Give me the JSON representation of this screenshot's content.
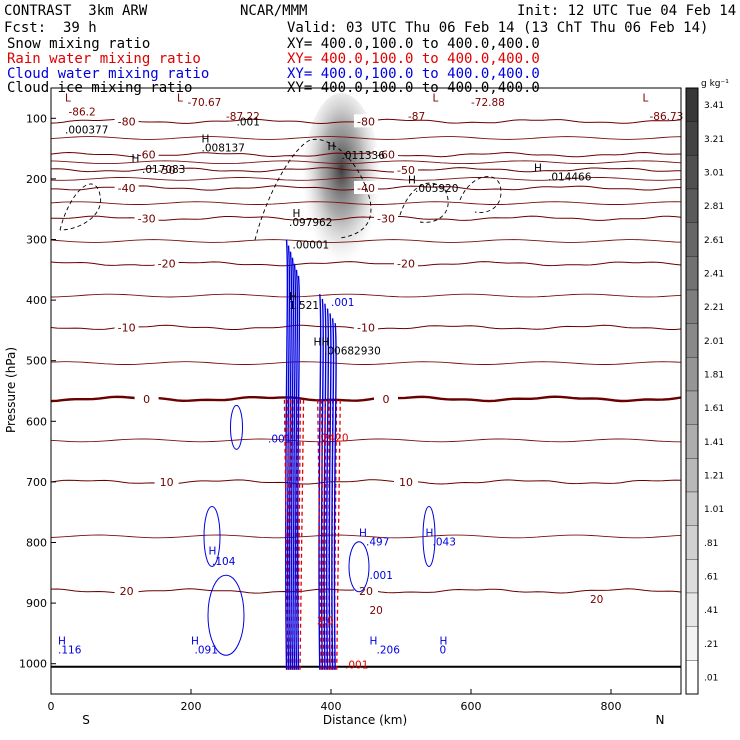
{
  "header": {
    "model": "CONTRAST  3km ARW",
    "center": "NCAR/MMM",
    "init": "Init: 12 UTC Tue 04 Feb 14",
    "fcst_label": "Fcst:",
    "fcst_value": "39 h",
    "valid": "Valid: 03 UTC Thu 06 Feb 14 (13 ChT Thu 06 Feb 14)"
  },
  "fields": [
    {
      "name": "Snow mixing ratio",
      "color": "#000000",
      "xy": "XY= 400.0,100.0 to 400.0,400.0"
    },
    {
      "name": "Rain water mixing ratio",
      "color": "#e00000",
      "xy": "XY= 400.0,100.0 to 400.0,400.0"
    },
    {
      "name": "Cloud water mixing ratio",
      "color": "#0000e0",
      "xy": "XY= 400.0,100.0 to 400.0,400.0"
    },
    {
      "name": "Cloud ice mixing ratio",
      "color": "#000000",
      "xy": "XY= 400.0,100.0 to 400.0,400.0"
    }
  ],
  "chart_data": {
    "type": "heatmap",
    "xlabel": "Distance (km)",
    "ylabel": "Pressure (hPa)",
    "xlim": [
      0,
      900
    ],
    "ylim": [
      1050,
      50
    ],
    "x_ticks": [
      0,
      200,
      400,
      600,
      800
    ],
    "y_ticks": [
      100,
      200,
      300,
      400,
      500,
      600,
      700,
      800,
      900,
      1000
    ],
    "x_endpoints": [
      "S",
      "N"
    ],
    "colorbar": {
      "unit": "g kg⁻¹",
      "labels": [
        "3.41",
        "3.21",
        "3.01",
        "2.81",
        "2.61",
        "2.41",
        "2.21",
        "2.01",
        "1.81",
        "1.61",
        "1.41",
        "1.21",
        "1.01",
        ".81",
        ".61",
        ".41",
        ".21",
        ".01"
      ]
    },
    "isotherms": [
      {
        "p": 105,
        "label": "-80"
      },
      {
        "p": 160,
        "label": "-60"
      },
      {
        "p": 185,
        "label": "-50"
      },
      {
        "p": 215,
        "label": "-40"
      },
      {
        "p": 265,
        "label": "-30"
      },
      {
        "p": 340,
        "label": "-20"
      },
      {
        "p": 445,
        "label": "-10"
      },
      {
        "p": 563,
        "label": "0"
      },
      {
        "p": 700,
        "label": "10"
      },
      {
        "p": 880,
        "label": "20"
      }
    ],
    "annotations": [
      {
        "text": "L",
        "x": 20,
        "p": 72,
        "color": "#7a0000"
      },
      {
        "text": "-86.2",
        "x": 25,
        "p": 95,
        "color": "#7a0000"
      },
      {
        "text": ".000377",
        "x": 20,
        "p": 125,
        "color": "#000"
      },
      {
        "text": "L",
        "x": 180,
        "p": 72,
        "color": "#7a0000"
      },
      {
        "text": "-70.67",
        "x": 195,
        "p": 80,
        "color": "#7a0000"
      },
      {
        "text": "-87.22",
        "x": 250,
        "p": 103,
        "color": "#7a0000"
      },
      {
        "text": ".001",
        "x": 265,
        "p": 112,
        "color": "#000"
      },
      {
        "text": "H",
        "x": 215,
        "p": 140,
        "color": "#000"
      },
      {
        "text": ".008137",
        "x": 215,
        "p": 155,
        "color": "#000"
      },
      {
        "text": "H",
        "x": 115,
        "p": 172,
        "color": "#000"
      },
      {
        "text": ".017083",
        "x": 130,
        "p": 190,
        "color": "#000"
      },
      {
        "text": "H",
        "x": 395,
        "p": 152,
        "color": "#000"
      },
      {
        "text": ".011336",
        "x": 415,
        "p": 167,
        "color": "#000"
      },
      {
        "text": "-72.88",
        "x": 600,
        "p": 80,
        "color": "#7a0000"
      },
      {
        "text": "-87",
        "x": 510,
        "p": 103,
        "color": "#7a0000"
      },
      {
        "text": "-86.73",
        "x": 855,
        "p": 103,
        "color": "#7a0000"
      },
      {
        "text": "L",
        "x": 845,
        "p": 72,
        "color": "#7a0000"
      },
      {
        "text": "L",
        "x": 545,
        "p": 72,
        "color": "#7a0000"
      },
      {
        "text": "H",
        "x": 510,
        "p": 208,
        "color": "#000"
      },
      {
        "text": ".005920",
        "x": 520,
        "p": 222,
        "color": "#000"
      },
      {
        "text": "H",
        "x": 690,
        "p": 188,
        "color": "#000"
      },
      {
        "text": ".014466",
        "x": 710,
        "p": 203,
        "color": "#000"
      },
      {
        "text": "H",
        "x": 345,
        "p": 263,
        "color": "#000"
      },
      {
        "text": ".097962",
        "x": 340,
        "p": 278,
        "color": "#000"
      },
      {
        "text": ".00001",
        "x": 345,
        "p": 315,
        "color": "#000"
      },
      {
        "text": "H",
        "x": 340,
        "p": 400,
        "color": "#000"
      },
      {
        "text": "1.521",
        "x": 340,
        "p": 415,
        "color": "#000"
      },
      {
        "text": ".001",
        "x": 400,
        "p": 410,
        "color": "#0000e0"
      },
      {
        "text": "HH",
        "x": 375,
        "p": 475,
        "color": "#000"
      },
      {
        "text": ".00682930",
        "x": 390,
        "p": 490,
        "color": "#000"
      },
      {
        "text": ".001",
        "x": 310,
        "p": 635,
        "color": "#0000e0"
      },
      {
        "text": "2420",
        "x": 387,
        "p": 633,
        "color": "#e00000"
      },
      {
        "text": "H",
        "x": 225,
        "p": 820,
        "color": "#0000e0"
      },
      {
        "text": ".104",
        "x": 230,
        "p": 837,
        "color": "#0000e0"
      },
      {
        "text": "H",
        "x": 440,
        "p": 790,
        "color": "#0000e0"
      },
      {
        "text": ".497",
        "x": 450,
        "p": 805,
        "color": "#0000e0"
      },
      {
        "text": ".001",
        "x": 455,
        "p": 860,
        "color": "#0000e0"
      },
      {
        "text": "H",
        "x": 535,
        "p": 790,
        "color": "#0000e0"
      },
      {
        "text": ".043",
        "x": 545,
        "p": 805,
        "color": "#0000e0"
      },
      {
        "text": "H",
        "x": 10,
        "p": 968,
        "color": "#0000e0"
      },
      {
        "text": ".116",
        "x": 10,
        "p": 983,
        "color": "#0000e0"
      },
      {
        "text": "H",
        "x": 200,
        "p": 968,
        "color": "#0000e0"
      },
      {
        "text": ".091",
        "x": 205,
        "p": 983,
        "color": "#0000e0"
      },
      {
        "text": "H",
        "x": 455,
        "p": 968,
        "color": "#0000e0"
      },
      {
        "text": ".206",
        "x": 465,
        "p": 983,
        "color": "#0000e0"
      },
      {
        "text": "H",
        "x": 555,
        "p": 968,
        "color": "#0000e0"
      },
      {
        "text": "0",
        "x": 555,
        "p": 983,
        "color": "#0000e0"
      },
      {
        "text": "2.0",
        "x": 380,
        "p": 935,
        "color": "#e00000"
      },
      {
        "text": ".001",
        "x": 420,
        "p": 1008,
        "color": "#e00000"
      },
      {
        "text": "20",
        "x": 770,
        "p": 900,
        "color": "#7a0000"
      },
      {
        "text": "20",
        "x": 455,
        "p": 918,
        "color": "#7a0000"
      }
    ]
  }
}
